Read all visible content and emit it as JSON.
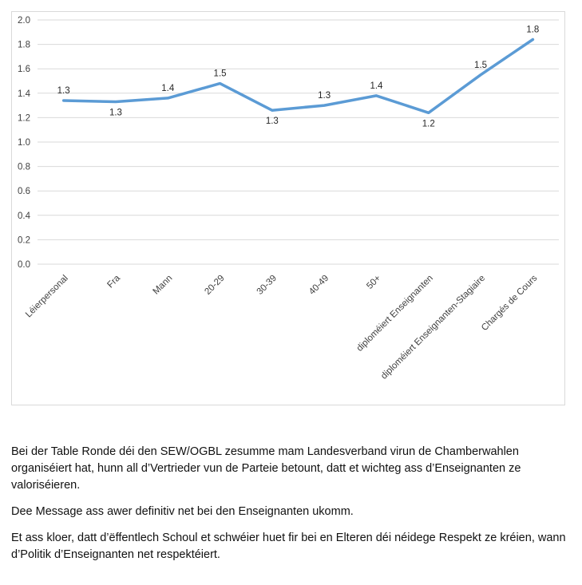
{
  "chart_data": {
    "type": "line",
    "title": "",
    "xlabel": "",
    "ylabel": "",
    "ylim": [
      0,
      2.0
    ],
    "yticks": [
      "0.0",
      "0.2",
      "0.4",
      "0.6",
      "0.8",
      "1.0",
      "1.2",
      "1.4",
      "1.6",
      "1.8",
      "2.0"
    ],
    "grid": true,
    "legend": "none",
    "categories": [
      "Léierpersonal",
      "Fra",
      "Mann",
      "20-29",
      "30-39",
      "40-49",
      "50+",
      "diploméiert Enseignanten",
      "diploméiert Enseignanten-Stagiaire",
      "Chargés de Cours"
    ],
    "series": [
      {
        "values": [
          1.34,
          1.33,
          1.36,
          1.48,
          1.26,
          1.3,
          1.38,
          1.24,
          1.55,
          1.84
        ],
        "labels": [
          "1.3",
          "1.3",
          "1.4",
          "1.5",
          "1.3",
          "1.3",
          "1.4",
          "1.2",
          "1.5",
          "1.8"
        ],
        "color": "#5b9bd5"
      }
    ]
  },
  "text": {
    "paragraphs": [
      "Bei der Table Ronde déi den SEW/OGBL zesumme mam Landesverband virun de Chamberwahlen organiséiert hat, hunn all d’Vertrieder vun de Parteie betount, datt et wichteg ass d’Enseignanten ze valoriséieren.",
      "Dee Message ass awer definitiv net bei den Enseignanten ukomm.",
      "Et ass kloer, datt d’ëffentlech Schoul et schwéier huet fir bei en Elteren déi néidege Respekt ze kréien, wann d’Politik d’Enseignanten net respektéiert."
    ]
  }
}
